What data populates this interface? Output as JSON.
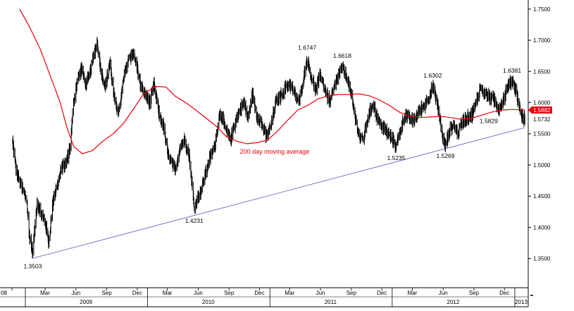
{
  "chart_data": {
    "type": "line",
    "title": "",
    "xlabel": "",
    "ylabel": "",
    "ylim": [
      1.31,
      1.76
    ],
    "xlim": [
      "2008-11-20",
      "2013-02-10"
    ],
    "grid": false,
    "y_axis_side": "right",
    "y_ticks": [
      "1.3500",
      "1.4000",
      "1.4500",
      "1.5000",
      "1.5500",
      "1.6000",
      "1.6500",
      "1.7000",
      "1.7500"
    ],
    "x_month_labels": [
      {
        "date": "2008-11-22",
        "label": "08"
      },
      {
        "date": "2009-03-01",
        "label": "Mar"
      },
      {
        "date": "2009-06-01",
        "label": "Jun"
      },
      {
        "date": "2009-09-01",
        "label": "Sep"
      },
      {
        "date": "2009-12-01",
        "label": "Dec"
      },
      {
        "date": "2010-03-01",
        "label": "Mar"
      },
      {
        "date": "2010-06-01",
        "label": "Jun"
      },
      {
        "date": "2010-09-01",
        "label": "Sep"
      },
      {
        "date": "2010-12-01",
        "label": "Dec"
      },
      {
        "date": "2011-03-01",
        "label": "Mar"
      },
      {
        "date": "2011-06-01",
        "label": "Jun"
      },
      {
        "date": "2011-09-01",
        "label": "Sep"
      },
      {
        "date": "2011-12-01",
        "label": "Dec"
      },
      {
        "date": "2012-03-01",
        "label": "Mar"
      },
      {
        "date": "2012-06-01",
        "label": "Jun"
      },
      {
        "date": "2012-09-01",
        "label": "Sep"
      },
      {
        "date": "2012-12-01",
        "label": "Dec"
      }
    ],
    "x_year_labels": [
      {
        "date": "2009-07-01",
        "label": "2009"
      },
      {
        "date": "2010-07-01",
        "label": "2010"
      },
      {
        "date": "2011-07-01",
        "label": "2011"
      },
      {
        "date": "2012-07-01",
        "label": "2012"
      },
      {
        "date": "2013-01-20",
        "label": "2013"
      }
    ],
    "year_separators": [
      "2009-01-01",
      "2010-01-01",
      "2011-01-01",
      "2012-01-01",
      "2013-01-01"
    ],
    "series": [
      {
        "type": "ohlc-bars",
        "color": "#000000",
        "points": [
          [
            "2008-11-22",
            1.545
          ],
          [
            "2008-12-05",
            1.49
          ],
          [
            "2008-12-20",
            1.465
          ],
          [
            "2009-01-05",
            1.445
          ],
          [
            "2009-01-12",
            1.39
          ],
          [
            "2009-01-23",
            1.36
          ],
          [
            "2009-02-05",
            1.44
          ],
          [
            "2009-02-18",
            1.42
          ],
          [
            "2009-03-01",
            1.41
          ],
          [
            "2009-03-12",
            1.375
          ],
          [
            "2009-03-25",
            1.445
          ],
          [
            "2009-04-08",
            1.47
          ],
          [
            "2009-04-22",
            1.5
          ],
          [
            "2009-05-01",
            1.5
          ],
          [
            "2009-05-15",
            1.53
          ],
          [
            "2009-05-25",
            1.6
          ],
          [
            "2009-06-05",
            1.635
          ],
          [
            "2009-06-18",
            1.655
          ],
          [
            "2009-06-30",
            1.63
          ],
          [
            "2009-07-10",
            1.64
          ],
          [
            "2009-07-20",
            1.665
          ],
          [
            "2009-08-03",
            1.698
          ],
          [
            "2009-08-15",
            1.65
          ],
          [
            "2009-08-28",
            1.625
          ],
          [
            "2009-09-10",
            1.665
          ],
          [
            "2009-09-25",
            1.6
          ],
          [
            "2009-10-08",
            1.585
          ],
          [
            "2009-10-22",
            1.64
          ],
          [
            "2009-11-05",
            1.67
          ],
          [
            "2009-11-18",
            1.68
          ],
          [
            "2009-11-30",
            1.658
          ],
          [
            "2009-12-12",
            1.625
          ],
          [
            "2009-12-28",
            1.61
          ],
          [
            "2010-01-08",
            1.6
          ],
          [
            "2010-01-20",
            1.628
          ],
          [
            "2010-02-05",
            1.58
          ],
          [
            "2010-02-18",
            1.56
          ],
          [
            "2010-03-01",
            1.52
          ],
          [
            "2010-03-12",
            1.505
          ],
          [
            "2010-03-25",
            1.49
          ],
          [
            "2010-04-08",
            1.53
          ],
          [
            "2010-04-22",
            1.54
          ],
          [
            "2010-05-05",
            1.515
          ],
          [
            "2010-05-15",
            1.46
          ],
          [
            "2010-05-20",
            1.43
          ],
          [
            "2010-05-28",
            1.445
          ],
          [
            "2010-06-10",
            1.46
          ],
          [
            "2010-06-22",
            1.485
          ],
          [
            "2010-07-05",
            1.51
          ],
          [
            "2010-07-20",
            1.53
          ],
          [
            "2010-08-05",
            1.585
          ],
          [
            "2010-08-20",
            1.56
          ],
          [
            "2010-09-05",
            1.54
          ],
          [
            "2010-09-20",
            1.57
          ],
          [
            "2010-10-05",
            1.59
          ],
          [
            "2010-10-15",
            1.6
          ],
          [
            "2010-10-28",
            1.575
          ],
          [
            "2010-11-10",
            1.615
          ],
          [
            "2010-11-22",
            1.58
          ],
          [
            "2010-12-05",
            1.57
          ],
          [
            "2010-12-20",
            1.545
          ],
          [
            "2011-01-03",
            1.56
          ],
          [
            "2011-01-18",
            1.6
          ],
          [
            "2011-02-01",
            1.61
          ],
          [
            "2011-02-18",
            1.625
          ],
          [
            "2011-03-01",
            1.63
          ],
          [
            "2011-03-15",
            1.615
          ],
          [
            "2011-03-29",
            1.6
          ],
          [
            "2011-04-10",
            1.635
          ],
          [
            "2011-04-22",
            1.67
          ],
          [
            "2011-05-05",
            1.64
          ],
          [
            "2011-05-18",
            1.62
          ],
          [
            "2011-06-01",
            1.645
          ],
          [
            "2011-06-15",
            1.62
          ],
          [
            "2011-06-28",
            1.6
          ],
          [
            "2011-07-10",
            1.62
          ],
          [
            "2011-07-25",
            1.645
          ],
          [
            "2011-08-05",
            1.655
          ],
          [
            "2011-08-20",
            1.64
          ],
          [
            "2011-09-01",
            1.61
          ],
          [
            "2011-09-15",
            1.57
          ],
          [
            "2011-09-25",
            1.545
          ],
          [
            "2011-10-06",
            1.54
          ],
          [
            "2011-10-20",
            1.575
          ],
          [
            "2011-11-05",
            1.6
          ],
          [
            "2011-11-20",
            1.57
          ],
          [
            "2011-12-05",
            1.56
          ],
          [
            "2011-12-20",
            1.55
          ],
          [
            "2012-01-03",
            1.54
          ],
          [
            "2012-01-13",
            1.53
          ],
          [
            "2012-01-25",
            1.555
          ],
          [
            "2012-02-08",
            1.58
          ],
          [
            "2012-02-20",
            1.575
          ],
          [
            "2012-03-05",
            1.57
          ],
          [
            "2012-03-20",
            1.585
          ],
          [
            "2012-04-05",
            1.595
          ],
          [
            "2012-04-20",
            1.61
          ],
          [
            "2012-05-01",
            1.625
          ],
          [
            "2012-05-12",
            1.605
          ],
          [
            "2012-05-22",
            1.575
          ],
          [
            "2012-06-01",
            1.54
          ],
          [
            "2012-06-08",
            1.53
          ],
          [
            "2012-06-20",
            1.555
          ],
          [
            "2012-07-02",
            1.565
          ],
          [
            "2012-07-15",
            1.55
          ],
          [
            "2012-07-28",
            1.57
          ],
          [
            "2012-08-10",
            1.575
          ],
          [
            "2012-08-25",
            1.58
          ],
          [
            "2012-09-05",
            1.595
          ],
          [
            "2012-09-20",
            1.625
          ],
          [
            "2012-10-02",
            1.615
          ],
          [
            "2012-10-15",
            1.61
          ],
          [
            "2012-10-30",
            1.605
          ],
          [
            "2012-11-15",
            1.59
          ],
          [
            "2012-11-28",
            1.605
          ],
          [
            "2012-12-10",
            1.625
          ],
          [
            "2012-12-24",
            1.635
          ],
          [
            "2013-01-05",
            1.62
          ],
          [
            "2013-01-15",
            1.59
          ],
          [
            "2013-01-25",
            1.575
          ],
          [
            "2013-01-31",
            1.5732
          ]
        ]
      },
      {
        "name": "200 day moving average",
        "type": "line",
        "color": "#e8000b",
        "points": [
          [
            "2008-12-15",
            1.75
          ],
          [
            "2009-01-15",
            1.72
          ],
          [
            "2009-02-15",
            1.685
          ],
          [
            "2009-03-15",
            1.645
          ],
          [
            "2009-04-15",
            1.6
          ],
          [
            "2009-05-05",
            1.56
          ],
          [
            "2009-05-25",
            1.53
          ],
          [
            "2009-06-20",
            1.518
          ],
          [
            "2009-07-20",
            1.523
          ],
          [
            "2009-08-20",
            1.538
          ],
          [
            "2009-09-20",
            1.55
          ],
          [
            "2009-10-20",
            1.566
          ],
          [
            "2009-11-20",
            1.59
          ],
          [
            "2009-12-20",
            1.614
          ],
          [
            "2010-01-25",
            1.626
          ],
          [
            "2010-02-25",
            1.625
          ],
          [
            "2010-03-25",
            1.61
          ],
          [
            "2010-04-25",
            1.6
          ],
          [
            "2010-05-25",
            1.588
          ],
          [
            "2010-06-25",
            1.575
          ],
          [
            "2010-07-25",
            1.562
          ],
          [
            "2010-08-25",
            1.545
          ],
          [
            "2010-09-25",
            1.538
          ],
          [
            "2010-10-25",
            1.534
          ],
          [
            "2010-11-25",
            1.536
          ],
          [
            "2010-12-25",
            1.54
          ],
          [
            "2011-01-25",
            1.555
          ],
          [
            "2011-02-25",
            1.573
          ],
          [
            "2011-03-25",
            1.588
          ],
          [
            "2011-04-25",
            1.596
          ],
          [
            "2011-05-25",
            1.606
          ],
          [
            "2011-06-25",
            1.611
          ],
          [
            "2011-07-25",
            1.613
          ],
          [
            "2011-08-25",
            1.613
          ],
          [
            "2011-09-25",
            1.614
          ],
          [
            "2011-10-25",
            1.611
          ],
          [
            "2011-11-25",
            1.604
          ],
          [
            "2011-12-25",
            1.595
          ],
          [
            "2012-01-25",
            1.584
          ],
          [
            "2012-02-25",
            1.578
          ],
          [
            "2012-03-25",
            1.576
          ],
          [
            "2012-04-25",
            1.577
          ],
          [
            "2012-05-25",
            1.578
          ],
          [
            "2012-06-25",
            1.576
          ],
          [
            "2012-07-25",
            1.573
          ],
          [
            "2012-08-25",
            1.575
          ],
          [
            "2012-09-25",
            1.58
          ],
          [
            "2012-10-25",
            1.585
          ],
          [
            "2012-11-25",
            1.588
          ],
          [
            "2012-12-25",
            1.589
          ],
          [
            "2013-01-31",
            1.5882
          ]
        ]
      },
      {
        "type": "trendline",
        "color": "#6a6ec6",
        "points": [
          [
            "2009-01-23",
            1.3503
          ],
          [
            "2013-01-31",
            1.56
          ]
        ]
      }
    ],
    "annotations": [
      {
        "date": "2009-01-23",
        "value": 1.3503,
        "text": "1.3503",
        "position": "below"
      },
      {
        "date": "2010-05-20",
        "value": 1.4231,
        "text": "1.4231",
        "position": "below"
      },
      {
        "date": "2011-04-22",
        "value": 1.6747,
        "text": "1.6747",
        "position": "above"
      },
      {
        "date": "2011-08-05",
        "value": 1.6618,
        "text": "1.6618",
        "position": "above"
      },
      {
        "date": "2012-01-13",
        "value": 1.5235,
        "text": "1.5235",
        "position": "below"
      },
      {
        "date": "2012-05-01",
        "value": 1.6302,
        "text": "1.6302",
        "position": "above"
      },
      {
        "date": "2012-06-08",
        "value": 1.5269,
        "text": "1.5269",
        "position": "below"
      },
      {
        "date": "2012-10-15",
        "value": 1.5829,
        "text": "1.5829",
        "position": "below"
      },
      {
        "date": "2012-12-24",
        "value": 1.6381,
        "text": "1.6381",
        "position": "above"
      }
    ],
    "ma_label": {
      "text": "200 day moving average",
      "date": "2011-01-15",
      "value": 1.518
    },
    "last_values": [
      {
        "text": "1.5882",
        "value": 1.5882,
        "style": "red-tag"
      },
      {
        "text": "1.5732",
        "value": 1.5732,
        "style": "plain"
      }
    ]
  }
}
